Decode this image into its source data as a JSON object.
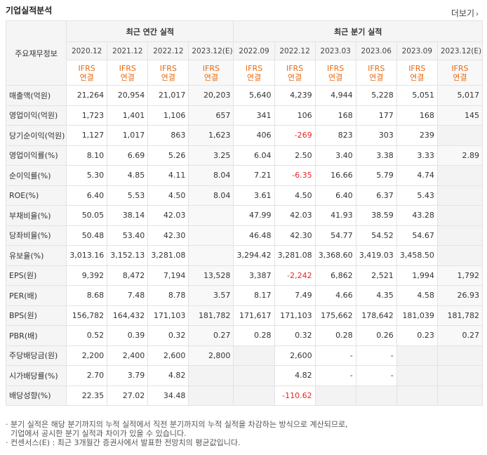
{
  "header": {
    "title": "기업실적분석",
    "more": "더보기",
    "more_arrow": "›"
  },
  "table": {
    "corner": "주요재무정보",
    "annual_group": "최근 연간 실적",
    "quarter_group": "최근 분기 실적",
    "periods": [
      "2020.12",
      "2021.12",
      "2022.12",
      "2023.12(E)",
      "2022.09",
      "2022.12",
      "2023.03",
      "2023.06",
      "2023.09",
      "2023.12(E)"
    ],
    "ifrs_top": "IFRS",
    "ifrs_bottom": "연결",
    "rows": [
      {
        "label": "매출액(억원)",
        "values": [
          "21,264",
          "20,954",
          "21,017",
          "20,203",
          "5,640",
          "4,239",
          "4,944",
          "5,228",
          "5,051",
          "5,017"
        ]
      },
      {
        "label": "영업이익(억원)",
        "values": [
          "1,723",
          "1,401",
          "1,106",
          "657",
          "341",
          "106",
          "168",
          "177",
          "168",
          "145"
        ]
      },
      {
        "label": "당기순이익(억원)",
        "values": [
          "1,127",
          "1,017",
          "863",
          "1,623",
          "406",
          "-269",
          "823",
          "303",
          "239",
          ""
        ]
      },
      {
        "label": "영업이익률(%)",
        "values": [
          "8.10",
          "6.69",
          "5.26",
          "3.25",
          "6.04",
          "2.50",
          "3.40",
          "3.38",
          "3.33",
          "2.89"
        ]
      },
      {
        "label": "순이익률(%)",
        "values": [
          "5.30",
          "4.85",
          "4.11",
          "8.04",
          "7.21",
          "-6.35",
          "16.66",
          "5.79",
          "4.74",
          ""
        ]
      },
      {
        "label": "ROE(%)",
        "values": [
          "6.40",
          "5.53",
          "4.50",
          "8.04",
          "3.61",
          "4.50",
          "6.40",
          "6.37",
          "5.43",
          ""
        ]
      },
      {
        "label": "부채비율(%)",
        "values": [
          "50.05",
          "38.14",
          "42.03",
          "",
          "47.99",
          "42.03",
          "41.93",
          "38.59",
          "43.28",
          ""
        ]
      },
      {
        "label": "당좌비율(%)",
        "values": [
          "50.48",
          "53.40",
          "42.30",
          "",
          "46.48",
          "42.30",
          "54.77",
          "54.52",
          "54.67",
          ""
        ]
      },
      {
        "label": "유보율(%)",
        "values": [
          "3,013.16",
          "3,152.13",
          "3,281.08",
          "",
          "3,294.42",
          "3,281.08",
          "3,368.60",
          "3,419.03",
          "3,458.50",
          ""
        ]
      },
      {
        "label": "EPS(원)",
        "values": [
          "9,392",
          "8,472",
          "7,194",
          "13,528",
          "3,387",
          "-2,242",
          "6,862",
          "2,521",
          "1,994",
          "1,792"
        ]
      },
      {
        "label": "PER(배)",
        "values": [
          "8.68",
          "7.48",
          "8.78",
          "3.57",
          "8.17",
          "7.49",
          "4.66",
          "4.35",
          "4.58",
          "26.93"
        ]
      },
      {
        "label": "BPS(원)",
        "values": [
          "156,782",
          "164,432",
          "171,103",
          "181,782",
          "171,617",
          "171,103",
          "175,662",
          "178,642",
          "181,039",
          "181,782"
        ]
      },
      {
        "label": "PBR(배)",
        "values": [
          "0.52",
          "0.39",
          "0.32",
          "0.27",
          "0.28",
          "0.32",
          "0.28",
          "0.26",
          "0.23",
          "0.27"
        ]
      },
      {
        "label": "주당배당금(원)",
        "values": [
          "2,200",
          "2,400",
          "2,600",
          "2,800",
          "",
          "2,600",
          "-",
          "-",
          "",
          ""
        ]
      },
      {
        "label": "시가배당률(%)",
        "values": [
          "2.70",
          "3.79",
          "4.82",
          "",
          "",
          "4.82",
          "-",
          "-",
          "",
          ""
        ]
      },
      {
        "label": "배당성향(%)",
        "values": [
          "22.35",
          "27.02",
          "34.48",
          "",
          "",
          "-110.62",
          "",
          "",
          "",
          ""
        ]
      }
    ]
  },
  "notes": [
    "· 분기 실적은 해당 분기까지의 누적 실적에서 직전 분기까지의 누적 실적을 차감하는 방식으로 계산되므로,",
    "  기업에서 공시한 분기 실적과 차이가 있을 수 있습니다.",
    "· 컨센서스(E) : 최근 3개월간 증권사에서 발표한 전망치의 평균값입니다."
  ]
}
